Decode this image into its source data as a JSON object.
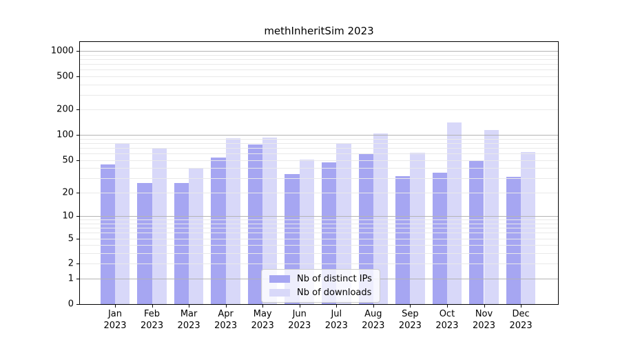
{
  "chart_data": {
    "type": "bar",
    "title": "methInheritSim 2023",
    "categories": [
      "Jan\n2023",
      "Feb\n2023",
      "Mar\n2023",
      "Apr\n2023",
      "May\n2023",
      "Jun\n2023",
      "Jul\n2023",
      "Aug\n2023",
      "Sep\n2023",
      "Oct\n2023",
      "Nov\n2023",
      "Dec\n2023"
    ],
    "series": [
      {
        "name": "Nb of distinct IPs",
        "color": "#a6a6f2",
        "values": [
          44,
          26,
          26,
          53,
          77,
          34,
          47,
          60,
          32,
          35,
          50,
          31
        ]
      },
      {
        "name": "Nb of downloads",
        "color": "#d8d8f9",
        "values": [
          80,
          70,
          40,
          91,
          93,
          51,
          79,
          105,
          61,
          140,
          115,
          62
        ]
      }
    ],
    "xlabel": "",
    "ylabel": "",
    "y_axis": {
      "scale": "log1p",
      "ticks": [
        0,
        1,
        2,
        5,
        10,
        20,
        50,
        100,
        200,
        500,
        1000
      ],
      "top_value": 1275,
      "gridlines_major": [
        1,
        10,
        100,
        1000
      ],
      "gridlines_minor": [
        2,
        3,
        4,
        5,
        6,
        7,
        8,
        9,
        20,
        30,
        40,
        50,
        60,
        70,
        80,
        90,
        200,
        300,
        400,
        500,
        600,
        700,
        800,
        900
      ]
    },
    "legend": {
      "position": "lower center"
    }
  },
  "colors": {
    "background": "#ffffff",
    "axis": "#000000",
    "grid_minor": "#e9e9e9",
    "grid_major": "#b3b3b3",
    "legend_border": "#cccccc"
  }
}
